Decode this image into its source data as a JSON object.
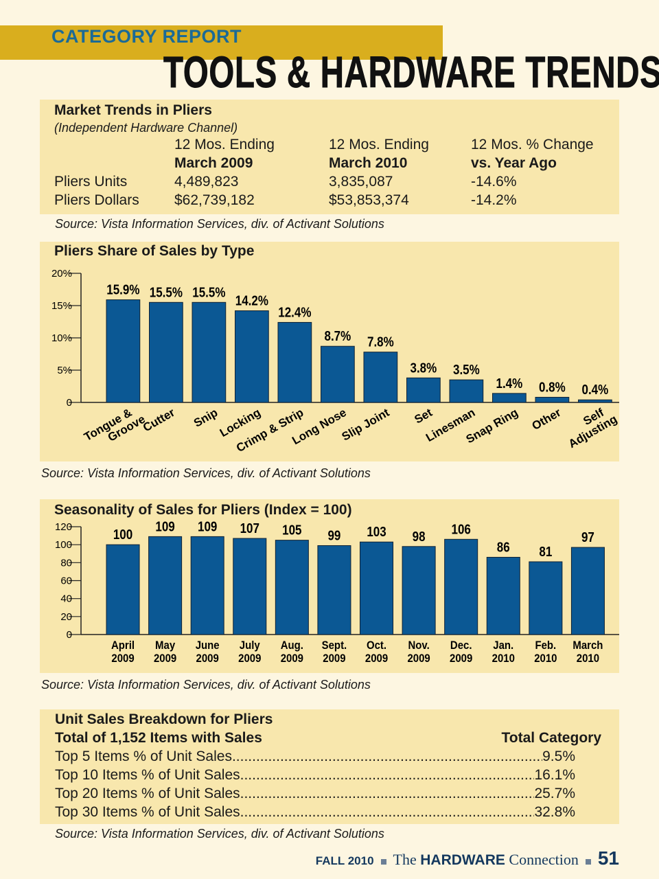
{
  "header": {
    "kicker": "CATEGORY REPORT",
    "title": "TOOLS & HARDWARE TRENDS"
  },
  "market": {
    "title": "Market Trends in Pliers",
    "subtitle": "(Independent Hardware Channel)",
    "columns": [
      [
        "12 Mos. Ending",
        "March 2009"
      ],
      [
        "12 Mos. Ending",
        "March 2010"
      ],
      [
        "12 Mos. % Change",
        "vs. Year Ago"
      ]
    ],
    "rows": [
      {
        "label": "Pliers Units",
        "values": [
          "4,489,823",
          "3,835,087",
          "-14.6%"
        ]
      },
      {
        "label": "Pliers Dollars",
        "values": [
          "$62,739,182",
          "$53,853,374",
          "-14.2%"
        ]
      }
    ],
    "source": "Source: Vista Information Services, div. of Activant Solutions"
  },
  "chart_data": [
    {
      "type": "bar",
      "title": "Pliers Share of Sales by Type",
      "categories": [
        "Tongue & Groove",
        "Cutter",
        "Snip",
        "Locking",
        "Crimp & Strip",
        "Long Nose",
        "Slip Joint",
        "Set",
        "Linesman",
        "Snap Ring",
        "Other",
        "Self Adjusting"
      ],
      "values": [
        15.9,
        15.5,
        15.5,
        14.2,
        12.4,
        8.7,
        7.8,
        3.8,
        3.5,
        1.4,
        0.8,
        0.4
      ],
      "data_labels": [
        "15.9%",
        "15.5%",
        "15.5%",
        "14.2%",
        "12.4%",
        "8.7%",
        "7.8%",
        "3.8%",
        "3.5%",
        "1.4%",
        "0.8%",
        "0.4%"
      ],
      "yticks": [
        "0",
        "5%",
        "10%",
        "15%",
        "20%"
      ],
      "ylim": [
        0,
        20
      ],
      "bar_color": "#0b5894",
      "source": "Source: Vista Information Services, div. of Activant Solutions"
    },
    {
      "type": "bar",
      "title": "Seasonality of Sales for Pliers (Index = 100)",
      "categories": [
        [
          "April",
          "2009"
        ],
        [
          "May",
          "2009"
        ],
        [
          "June",
          "2009"
        ],
        [
          "July",
          "2009"
        ],
        [
          "Aug.",
          "2009"
        ],
        [
          "Sept.",
          "2009"
        ],
        [
          "Oct.",
          "2009"
        ],
        [
          "Nov.",
          "2009"
        ],
        [
          "Dec.",
          "2009"
        ],
        [
          "Jan.",
          "2010"
        ],
        [
          "Feb.",
          "2010"
        ],
        [
          "March",
          "2010"
        ]
      ],
      "values": [
        100,
        109,
        109,
        107,
        105,
        99,
        103,
        98,
        106,
        86,
        81,
        97
      ],
      "yticks": [
        "0",
        "20",
        "40",
        "60",
        "80",
        "100",
        "120"
      ],
      "ylim": [
        0,
        120
      ],
      "bar_color": "#0b5894",
      "source": "Source: Vista Information Services, div. of Activant Solutions"
    }
  ],
  "units": {
    "title": "Unit Sales Breakdown for Pliers",
    "subtitle": "Total of 1,152 Items with Sales",
    "col": "Total Category",
    "rows": [
      {
        "label": "Top 5 Items % of Unit Sales",
        "value": "9.5%"
      },
      {
        "label": "Top 10 Items % of Unit Sales",
        "value": "16.1%"
      },
      {
        "label": "Top 20 Items % of Unit Sales",
        "value": "25.7%"
      },
      {
        "label": "Top 30 Items % of Unit Sales",
        "value": "32.8%"
      }
    ],
    "source": "Source: Vista Information Services, div. of Activant Solutions"
  },
  "footer": {
    "issue": "FALL 2010",
    "pub_the": "The",
    "pub_name": "HARDWARE",
    "pub_conn": "Connection",
    "page": "51"
  }
}
